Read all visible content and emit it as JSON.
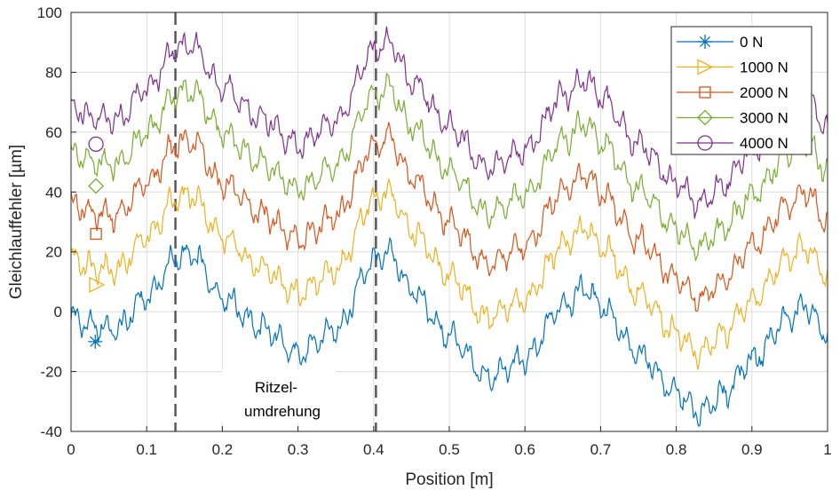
{
  "chart_data": {
    "type": "line",
    "title": "",
    "xlabel": "Position [m]",
    "ylabel": "Gleichlauffehler [µm]",
    "xlim": [
      0,
      1
    ],
    "ylim": [
      -40,
      100
    ],
    "xticks": [
      0,
      0.1,
      0.2,
      0.3,
      0.4,
      0.5,
      0.6,
      0.7,
      0.8,
      0.9,
      1
    ],
    "xtick_labels": [
      "0",
      "0.1",
      "0.2",
      "0.3",
      "0.4",
      "0.5",
      "0.6",
      "0.7",
      "0.8",
      "0.9",
      "1"
    ],
    "yticks": [
      -40,
      -20,
      0,
      20,
      40,
      60,
      80,
      100
    ],
    "ytick_labels": [
      "-40",
      "-20",
      "0",
      "20",
      "40",
      "60",
      "80",
      "100"
    ],
    "grid": true,
    "legend_position": "top-right",
    "vertical_lines": [
      0.138,
      0.403
    ],
    "annotation": {
      "line1": "Ritzel-",
      "line2": "umdrehung",
      "x": 0.3,
      "y": -25
    },
    "base_curve": {
      "x": [
        0,
        0.03,
        0.06,
        0.1,
        0.14,
        0.16,
        0.2,
        0.25,
        0.3,
        0.35,
        0.4,
        0.42,
        0.45,
        0.5,
        0.55,
        0.6,
        0.65,
        0.68,
        0.7,
        0.75,
        0.8,
        0.83,
        0.86,
        0.9,
        0.95,
        0.97,
        1
      ],
      "y": [
        -2,
        -5,
        -6,
        5,
        18,
        19,
        5,
        -5,
        -14,
        -6,
        17,
        20,
        7,
        -8,
        -22,
        -16,
        2,
        8,
        2,
        -14,
        -27,
        -34,
        -28,
        -16,
        -2,
        2,
        -8
      ]
    },
    "series": [
      {
        "name": "0 N",
        "offset": 0,
        "color": "#0072BD",
        "marker": "asterisk",
        "marker_x": 0.032,
        "marker_y": -10
      },
      {
        "name": "1000 N",
        "offset": 20,
        "color": "#EDB120",
        "marker": "triangle-right",
        "marker_x": 0.034,
        "marker_y": 9
      },
      {
        "name": "2000 N",
        "offset": 38,
        "color": "#D95319",
        "marker": "square",
        "marker_x": 0.033,
        "marker_y": 26
      },
      {
        "name": "3000 N",
        "offset": 55,
        "color": "#77AC30",
        "marker": "diamond",
        "marker_x": 0.033,
        "marker_y": 42
      },
      {
        "name": "4000 N",
        "offset": 70,
        "color": "#7E2F8E",
        "marker": "circle",
        "marker_x": 0.033,
        "marker_y": 56
      }
    ]
  }
}
